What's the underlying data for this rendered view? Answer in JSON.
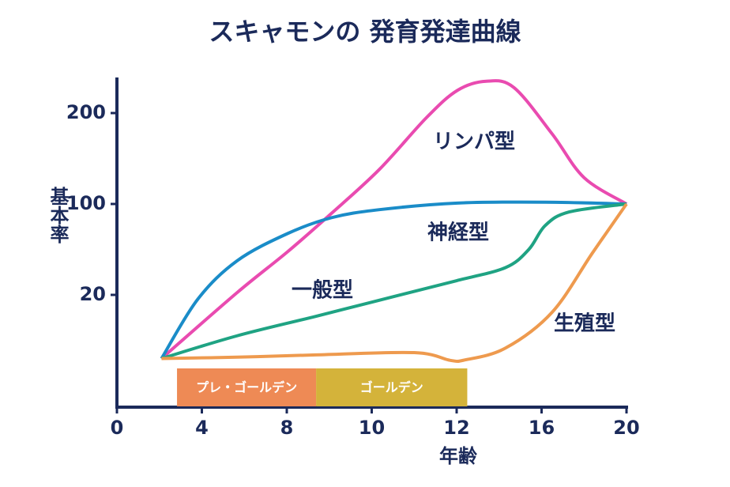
{
  "chart_data": {
    "type": "line",
    "title": "スキャモンの 発育発達曲線",
    "x_label": "年齢",
    "y_label": "基本率",
    "xlim": [
      0,
      20
    ],
    "xticks": [
      0,
      4,
      8,
      10,
      12,
      16,
      20
    ],
    "ylim": [
      0,
      240
    ],
    "yticks": [
      20,
      100,
      200
    ],
    "series": [
      {
        "name": "リンパ型",
        "color": "#e94bb0",
        "x": [
          2.1,
          5.66,
          8.02,
          9.06,
          10.18,
          11.29,
          12.04,
          13.4,
          14.7,
          16.5,
          18.0,
          20
        ],
        "values": [
          6,
          22,
          58,
          92,
          138,
          195,
          225,
          235,
          228,
          177,
          129,
          100
        ]
      },
      {
        "name": "神経型",
        "color": "#1a8cc8",
        "x": [
          2.1,
          3.8,
          5.66,
          8.02,
          9.06,
          10.18,
          12.04,
          16.17,
          20
        ],
        "values": [
          6,
          19,
          50,
          74,
          88,
          95,
          101,
          102,
          100
        ]
      },
      {
        "name": "一般型",
        "color": "#1fa383",
        "x": [
          2.1,
          5.66,
          8.69,
          10.55,
          12.0,
          14.3,
          15.4,
          16.17,
          17.3,
          20
        ],
        "values": [
          6,
          11,
          15.3,
          19.7,
          32.5,
          44,
          60,
          81,
          93,
          100
        ]
      },
      {
        "name": "生殖型",
        "color": "#ee9a4e",
        "x": [
          2.1,
          5.66,
          8.69,
          11.0,
          11.85,
          12.4,
          14.3,
          16.5,
          18.4,
          20
        ],
        "values": [
          6,
          6.3,
          6.8,
          7.3,
          5.6,
          5.7,
          8.3,
          16.2,
          57,
          100
        ]
      }
    ],
    "bands": [
      {
        "label": "プレ・ゴールデン",
        "start": 2.83,
        "end": 8.69,
        "color": "#ee8a55"
      },
      {
        "label": "ゴールデン",
        "start": 8.69,
        "end": 12.5,
        "color": "#d4b33a"
      }
    ]
  }
}
